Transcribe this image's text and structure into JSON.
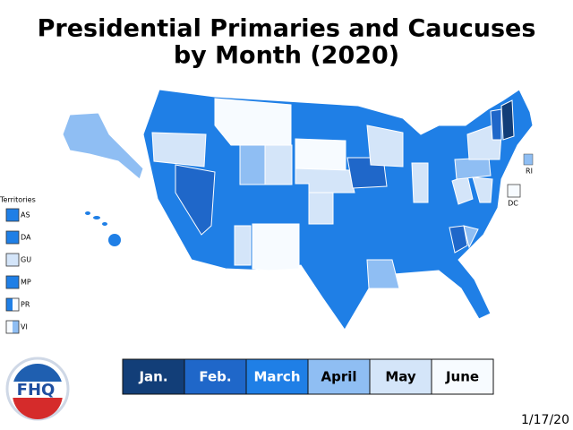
{
  "header": {
    "title_lines": [
      "Presidential Primaries and Caucuses",
      "by Month (2020)"
    ]
  },
  "territories": {
    "heading": "Territories",
    "items": [
      {
        "label": "AS",
        "colors": [
          "#1f7fe6"
        ]
      },
      {
        "label": "DA",
        "colors": [
          "#1f7fe6"
        ]
      },
      {
        "label": "GU",
        "colors": [
          "#d4e5f9"
        ]
      },
      {
        "label": "MP",
        "colors": [
          "#1f7fe6"
        ]
      },
      {
        "label": "PR",
        "colors": [
          "#1f7fe6",
          "#f7fbff"
        ]
      },
      {
        "label": "VI",
        "colors": [
          "#f7fbff",
          "#8fbef3"
        ]
      }
    ]
  },
  "map_labels": {
    "ri": "RI",
    "dc": "DC"
  },
  "legend": [
    {
      "label": "Jan.",
      "color": "#123e78",
      "text_color": "#ffffff"
    },
    {
      "label": "Feb.",
      "color": "#1f67c9",
      "text_color": "#ffffff"
    },
    {
      "label": "March",
      "color": "#1f7fe6",
      "text_color": "#ffffff"
    },
    {
      "label": "April",
      "color": "#8fbef3",
      "text_color": "#000000"
    },
    {
      "label": "May",
      "color": "#d4e5f9",
      "text_color": "#000000"
    },
    {
      "label": "June",
      "color": "#f7fbff",
      "text_color": "#000000"
    }
  ],
  "logo": {
    "text": "FHQ"
  },
  "date": "1/17/20"
}
